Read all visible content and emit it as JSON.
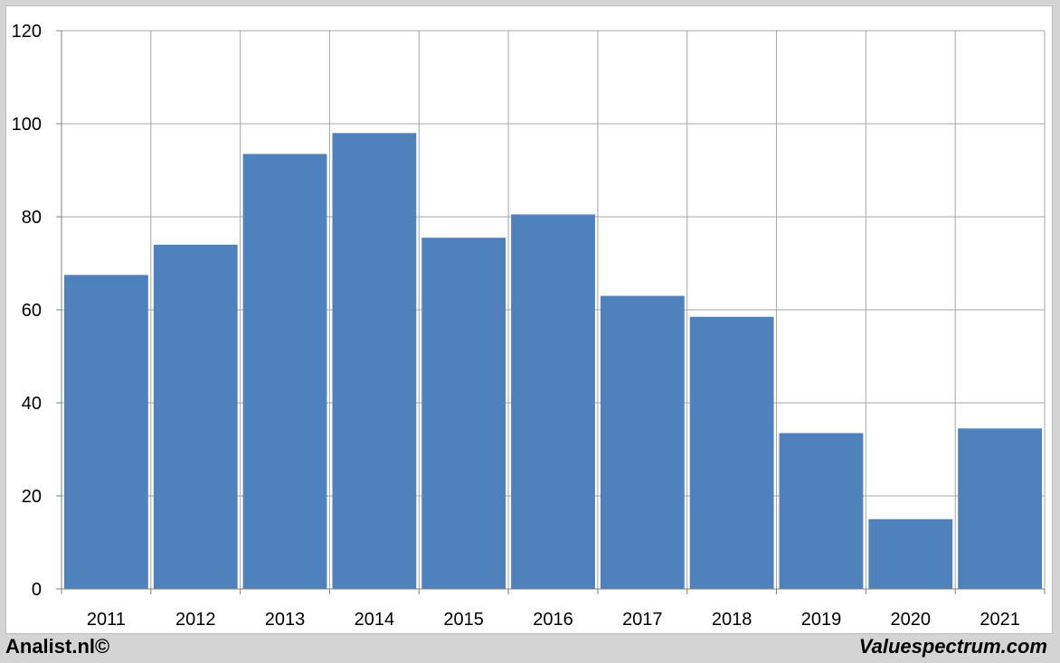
{
  "footer": {
    "left_text": "Analist.nl©",
    "right_text": "Valuespectrum.com"
  },
  "colors": {
    "bar": "#4f81bd",
    "grid": "#a6a6a6",
    "axis": "#7f7f7f",
    "background": "#ffffff",
    "frame": "#d4d4d4"
  },
  "chart_data": {
    "type": "bar",
    "categories": [
      "2011",
      "2012",
      "2013",
      "2014",
      "2015",
      "2016",
      "2017",
      "2018",
      "2019",
      "2020",
      "2021"
    ],
    "values": [
      67.5,
      74,
      93.5,
      98,
      75.5,
      80.5,
      63,
      58.5,
      33.5,
      15,
      34.5
    ],
    "title": "",
    "xlabel": "",
    "ylabel": "",
    "ylim": [
      0,
      120
    ],
    "yticks": [
      0,
      20,
      40,
      60,
      80,
      100,
      120
    ],
    "grid": true,
    "legend": "none"
  }
}
